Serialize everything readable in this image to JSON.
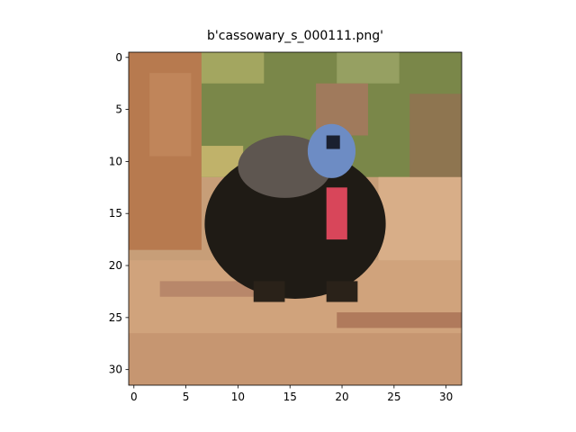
{
  "chart_data": {
    "type": "image",
    "title": "b'cassowary_s_000111.png'",
    "xlim": [
      -0.5,
      31.5
    ],
    "ylim": [
      31.5,
      -0.5
    ],
    "xticks": [
      0,
      5,
      10,
      15,
      20,
      25,
      30
    ],
    "yticks": [
      0,
      5,
      10,
      15,
      20,
      25,
      30
    ]
  }
}
